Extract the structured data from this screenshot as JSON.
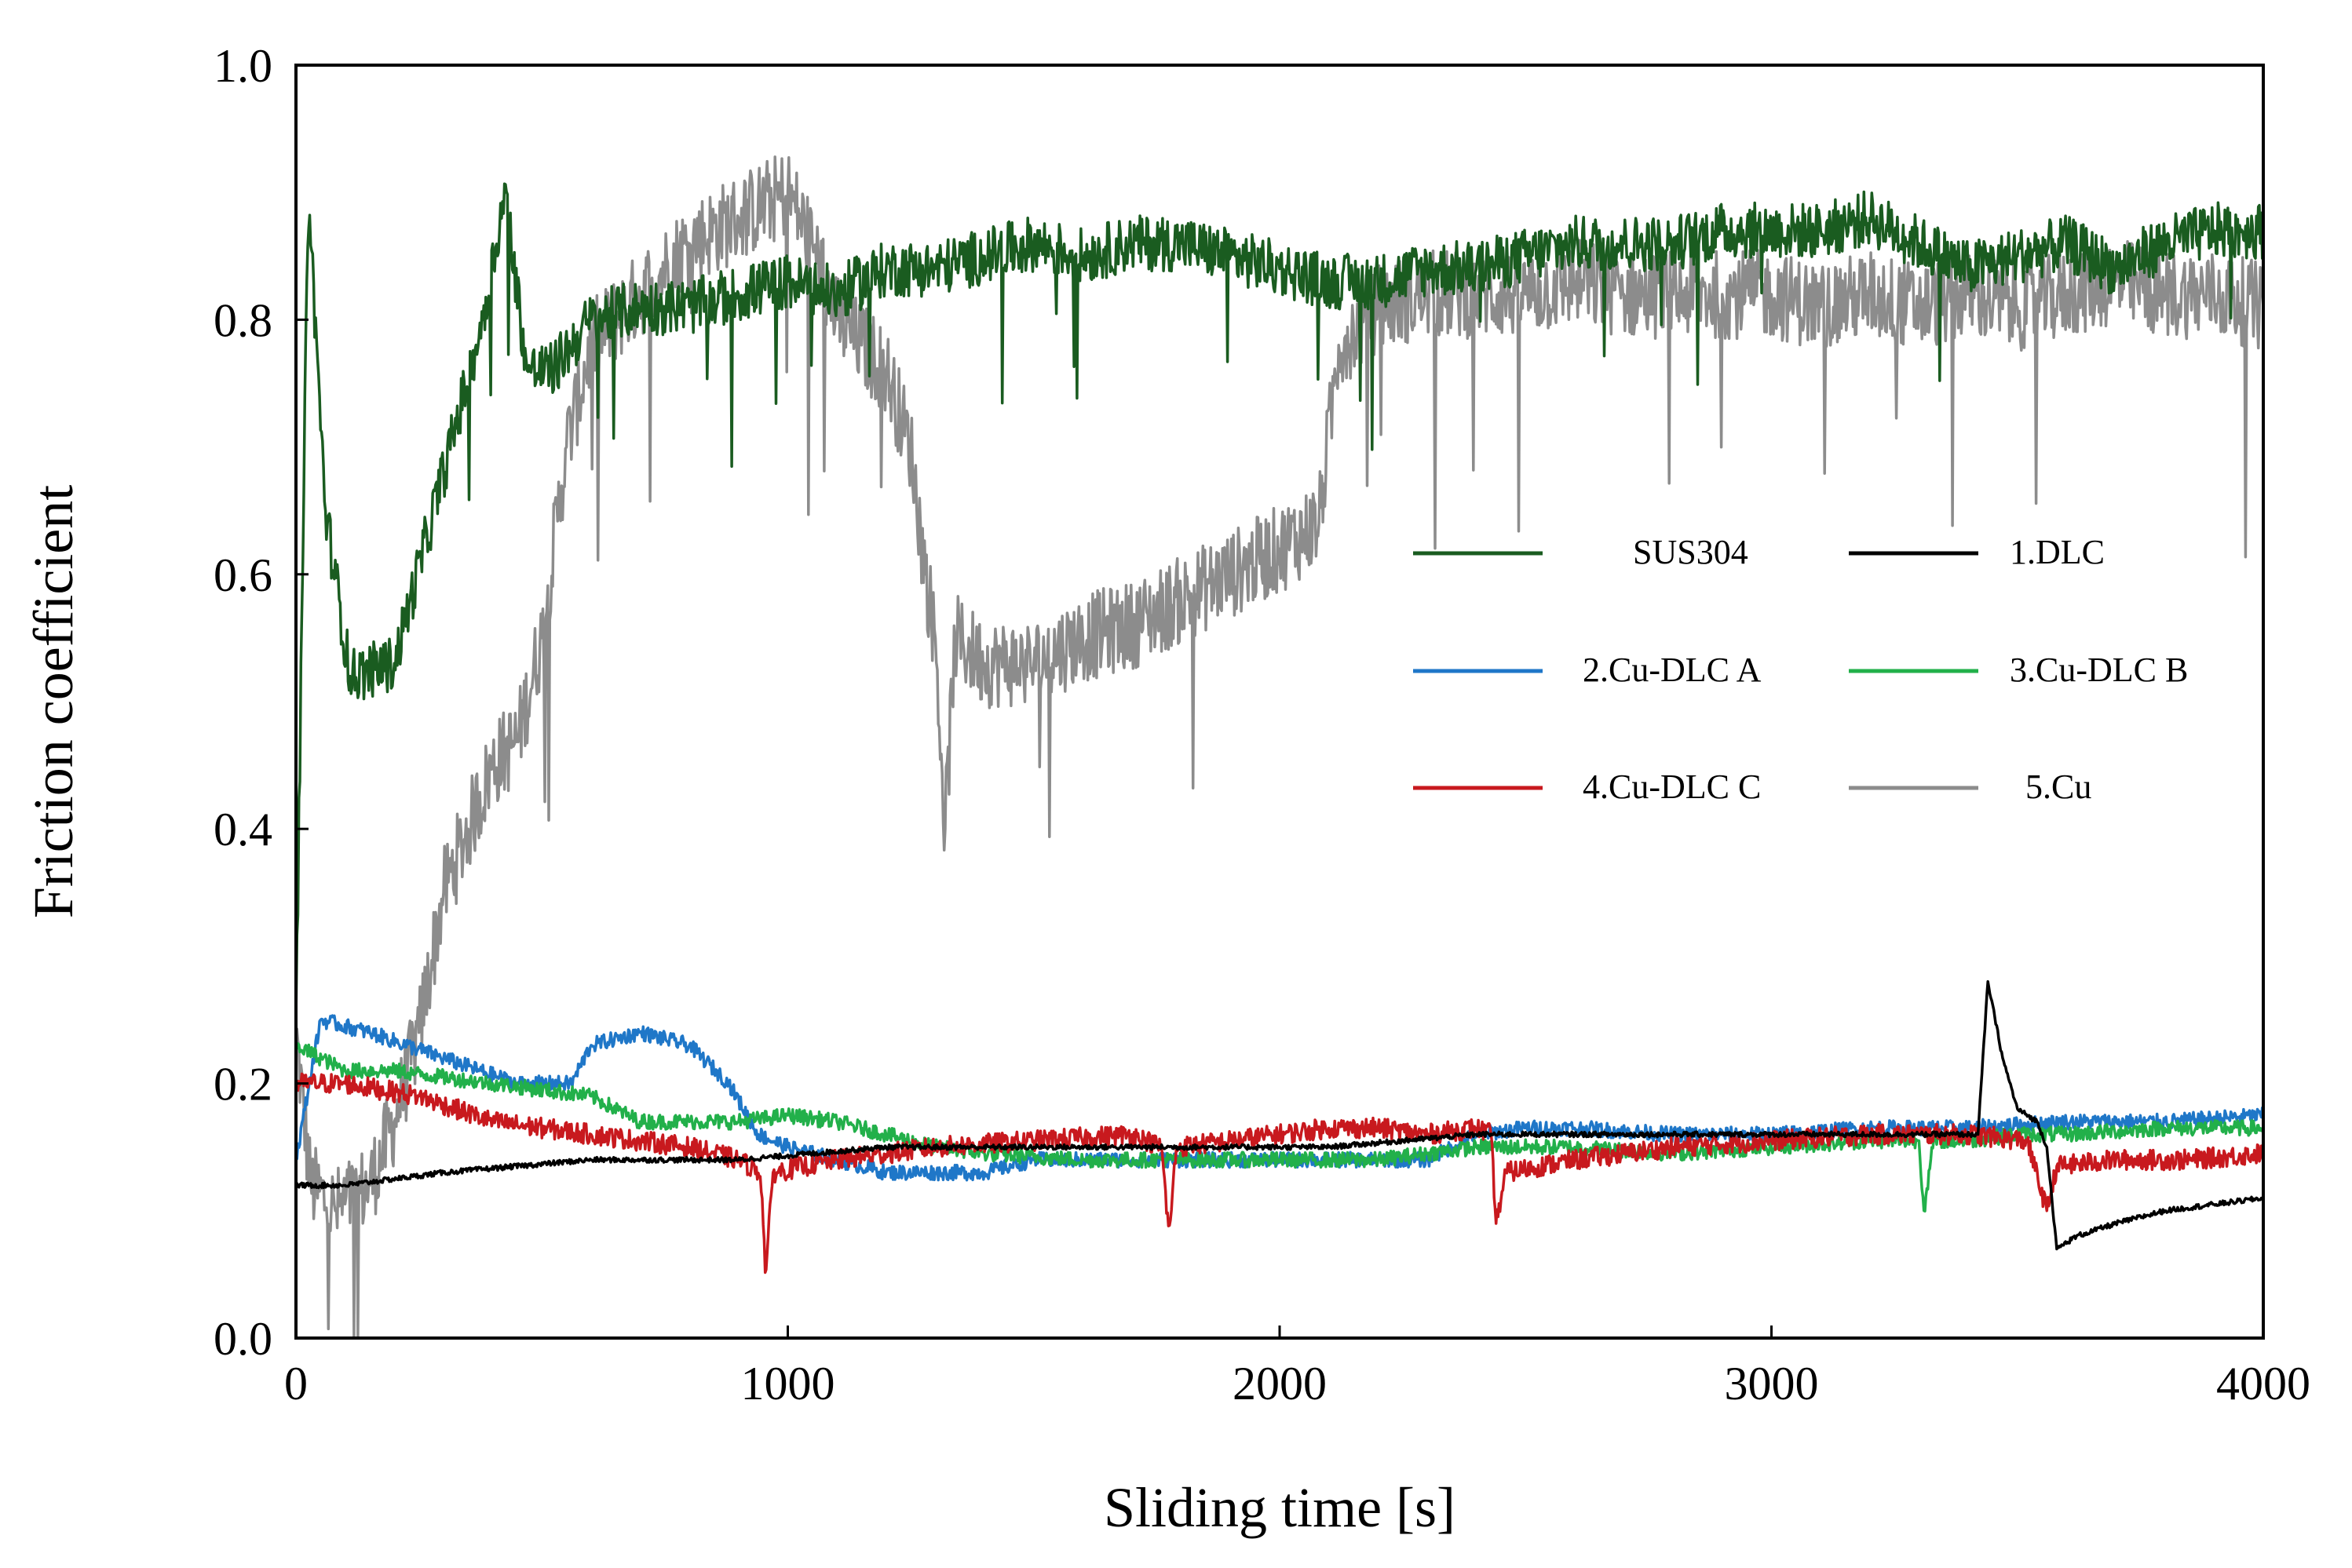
{
  "chart_data": {
    "type": "line",
    "title": "",
    "xlabel": "Sliding time [s]",
    "ylabel": "Friction coefficient",
    "xlim": [
      0,
      4000
    ],
    "ylim": [
      0.0,
      1.0
    ],
    "x_ticks": [
      "0",
      "1000",
      "2000",
      "3000",
      "4000"
    ],
    "y_ticks": [
      "0.0",
      "0.2",
      "0.4",
      "0.6",
      "0.8",
      "1.0"
    ],
    "grid": false,
    "legend_position": "center-right",
    "series": [
      {
        "name": "SUS304",
        "color": "#1a5c20",
        "noise": 0.022,
        "points": [
          [
            0,
            0.25
          ],
          [
            25,
            0.9
          ],
          [
            60,
            0.65
          ],
          [
            110,
            0.52
          ],
          [
            200,
            0.53
          ],
          [
            300,
            0.68
          ],
          [
            380,
            0.8
          ],
          [
            425,
            0.9
          ],
          [
            470,
            0.76
          ],
          [
            520,
            0.76
          ],
          [
            600,
            0.8
          ],
          [
            700,
            0.81
          ],
          [
            800,
            0.81
          ],
          [
            900,
            0.82
          ],
          [
            1000,
            0.83
          ],
          [
            1100,
            0.82
          ],
          [
            1200,
            0.84
          ],
          [
            1300,
            0.84
          ],
          [
            1400,
            0.85
          ],
          [
            1500,
            0.86
          ],
          [
            1600,
            0.85
          ],
          [
            1700,
            0.86
          ],
          [
            1800,
            0.86
          ],
          [
            1900,
            0.85
          ],
          [
            2000,
            0.84
          ],
          [
            2100,
            0.83
          ],
          [
            2200,
            0.83
          ],
          [
            2300,
            0.84
          ],
          [
            2400,
            0.84
          ],
          [
            2500,
            0.85
          ],
          [
            2600,
            0.86
          ],
          [
            2700,
            0.86
          ],
          [
            2800,
            0.86
          ],
          [
            2900,
            0.87
          ],
          [
            3000,
            0.87
          ],
          [
            3100,
            0.87
          ],
          [
            3200,
            0.88
          ],
          [
            3300,
            0.86
          ],
          [
            3400,
            0.84
          ],
          [
            3500,
            0.85
          ],
          [
            3600,
            0.86
          ],
          [
            3700,
            0.84
          ],
          [
            3800,
            0.86
          ],
          [
            3900,
            0.87
          ],
          [
            4000,
            0.87
          ]
        ]
      },
      {
        "name": "1.DLC",
        "color": "#000000",
        "noise": 0.002,
        "points": [
          [
            0,
            0.12
          ],
          [
            100,
            0.12
          ],
          [
            300,
            0.13
          ],
          [
            600,
            0.14
          ],
          [
            900,
            0.14
          ],
          [
            1200,
            0.15
          ],
          [
            1500,
            0.15
          ],
          [
            1800,
            0.15
          ],
          [
            2100,
            0.15
          ],
          [
            2400,
            0.16
          ],
          [
            2700,
            0.16
          ],
          [
            3000,
            0.16
          ],
          [
            3300,
            0.16
          ],
          [
            3420,
            0.16
          ],
          [
            3440,
            0.28
          ],
          [
            3470,
            0.22
          ],
          [
            3500,
            0.18
          ],
          [
            3540,
            0.17
          ],
          [
            3560,
            0.15
          ],
          [
            3580,
            0.07
          ],
          [
            3620,
            0.08
          ],
          [
            3700,
            0.09
          ],
          [
            3800,
            0.1
          ],
          [
            3900,
            0.105
          ],
          [
            4000,
            0.11
          ]
        ]
      },
      {
        "name": "2.Cu-DLC A",
        "color": "#1f77c8",
        "noise": 0.006,
        "points": [
          [
            0,
            0.14
          ],
          [
            50,
            0.25
          ],
          [
            150,
            0.24
          ],
          [
            300,
            0.22
          ],
          [
            450,
            0.2
          ],
          [
            560,
            0.2
          ],
          [
            600,
            0.23
          ],
          [
            700,
            0.24
          ],
          [
            800,
            0.23
          ],
          [
            880,
            0.2
          ],
          [
            940,
            0.16
          ],
          [
            1000,
            0.15
          ],
          [
            1100,
            0.14
          ],
          [
            1200,
            0.13
          ],
          [
            1300,
            0.13
          ],
          [
            1400,
            0.13
          ],
          [
            1500,
            0.14
          ],
          [
            1600,
            0.14
          ],
          [
            1700,
            0.14
          ],
          [
            1800,
            0.14
          ],
          [
            1900,
            0.14
          ],
          [
            2000,
            0.14
          ],
          [
            2100,
            0.14
          ],
          [
            2200,
            0.14
          ],
          [
            2300,
            0.14
          ],
          [
            2400,
            0.16
          ],
          [
            2500,
            0.165
          ],
          [
            2600,
            0.165
          ],
          [
            2800,
            0.16
          ],
          [
            3000,
            0.16
          ],
          [
            3200,
            0.165
          ],
          [
            3400,
            0.165
          ],
          [
            3600,
            0.17
          ],
          [
            3800,
            0.17
          ],
          [
            4000,
            0.175
          ]
        ]
      },
      {
        "name": "3.Cu-DLC B",
        "color": "#22b04a",
        "noise": 0.006,
        "points": [
          [
            0,
            0.23
          ],
          [
            100,
            0.21
          ],
          [
            200,
            0.21
          ],
          [
            400,
            0.2
          ],
          [
            600,
            0.19
          ],
          [
            700,
            0.17
          ],
          [
            800,
            0.17
          ],
          [
            900,
            0.17
          ],
          [
            1000,
            0.175
          ],
          [
            1100,
            0.17
          ],
          [
            1200,
            0.16
          ],
          [
            1300,
            0.15
          ],
          [
            1400,
            0.145
          ],
          [
            1600,
            0.14
          ],
          [
            1800,
            0.14
          ],
          [
            2000,
            0.14
          ],
          [
            2200,
            0.14
          ],
          [
            2400,
            0.15
          ],
          [
            2600,
            0.15
          ],
          [
            2800,
            0.145
          ],
          [
            3000,
            0.15
          ],
          [
            3200,
            0.155
          ],
          [
            3300,
            0.155
          ],
          [
            3310,
            0.1
          ],
          [
            3330,
            0.155
          ],
          [
            3400,
            0.155
          ],
          [
            3500,
            0.16
          ],
          [
            3600,
            0.16
          ],
          [
            3800,
            0.165
          ],
          [
            4000,
            0.165
          ]
        ]
      },
      {
        "name": "4.Cu-DLC C",
        "color": "#c8191e",
        "noise": 0.008,
        "points": [
          [
            0,
            0.2
          ],
          [
            100,
            0.2
          ],
          [
            250,
            0.19
          ],
          [
            400,
            0.17
          ],
          [
            600,
            0.16
          ],
          [
            800,
            0.15
          ],
          [
            900,
            0.14
          ],
          [
            945,
            0.13
          ],
          [
            955,
            0.05
          ],
          [
            970,
            0.13
          ],
          [
            1100,
            0.14
          ],
          [
            1300,
            0.15
          ],
          [
            1500,
            0.155
          ],
          [
            1700,
            0.16
          ],
          [
            1760,
            0.15
          ],
          [
            1775,
            0.08
          ],
          [
            1790,
            0.15
          ],
          [
            1900,
            0.155
          ],
          [
            2000,
            0.16
          ],
          [
            2100,
            0.165
          ],
          [
            2200,
            0.165
          ],
          [
            2300,
            0.16
          ],
          [
            2400,
            0.165
          ],
          [
            2430,
            0.16
          ],
          [
            2440,
            0.09
          ],
          [
            2460,
            0.13
          ],
          [
            2600,
            0.14
          ],
          [
            2800,
            0.15
          ],
          [
            3000,
            0.155
          ],
          [
            3200,
            0.16
          ],
          [
            3300,
            0.16
          ],
          [
            3400,
            0.16
          ],
          [
            3520,
            0.155
          ],
          [
            3560,
            0.1
          ],
          [
            3580,
            0.135
          ],
          [
            3700,
            0.14
          ],
          [
            3850,
            0.14
          ],
          [
            4000,
            0.145
          ]
        ]
      },
      {
        "name": "5.Cu",
        "color": "#8c8c8c",
        "noise": 0.035,
        "points": [
          [
            0,
            0.24
          ],
          [
            30,
            0.12
          ],
          [
            80,
            0.1
          ],
          [
            150,
            0.12
          ],
          [
            200,
            0.17
          ],
          [
            250,
            0.24
          ],
          [
            300,
            0.35
          ],
          [
            350,
            0.4
          ],
          [
            400,
            0.45
          ],
          [
            450,
            0.47
          ],
          [
            500,
            0.55
          ],
          [
            550,
            0.7
          ],
          [
            600,
            0.78
          ],
          [
            700,
            0.82
          ],
          [
            800,
            0.86
          ],
          [
            900,
            0.88
          ],
          [
            1000,
            0.9
          ],
          [
            1050,
            0.86
          ],
          [
            1100,
            0.8
          ],
          [
            1150,
            0.78
          ],
          [
            1200,
            0.76
          ],
          [
            1250,
            0.7
          ],
          [
            1280,
            0.6
          ],
          [
            1300,
            0.55
          ],
          [
            1320,
            0.4
          ],
          [
            1340,
            0.55
          ],
          [
            1400,
            0.53
          ],
          [
            1500,
            0.53
          ],
          [
            1600,
            0.55
          ],
          [
            1700,
            0.56
          ],
          [
            1800,
            0.58
          ],
          [
            1900,
            0.6
          ],
          [
            2000,
            0.62
          ],
          [
            2080,
            0.64
          ],
          [
            2120,
            0.78
          ],
          [
            2200,
            0.81
          ],
          [
            2300,
            0.82
          ],
          [
            2400,
            0.82
          ],
          [
            2500,
            0.82
          ],
          [
            2600,
            0.83
          ],
          [
            2700,
            0.82
          ],
          [
            2800,
            0.82
          ],
          [
            2900,
            0.82
          ],
          [
            3000,
            0.82
          ],
          [
            3100,
            0.81
          ],
          [
            3200,
            0.82
          ],
          [
            3300,
            0.81
          ],
          [
            3400,
            0.82
          ],
          [
            3500,
            0.81
          ],
          [
            3600,
            0.82
          ],
          [
            3700,
            0.83
          ],
          [
            3800,
            0.82
          ],
          [
            3900,
            0.82
          ],
          [
            4000,
            0.81
          ]
        ]
      }
    ]
  }
}
